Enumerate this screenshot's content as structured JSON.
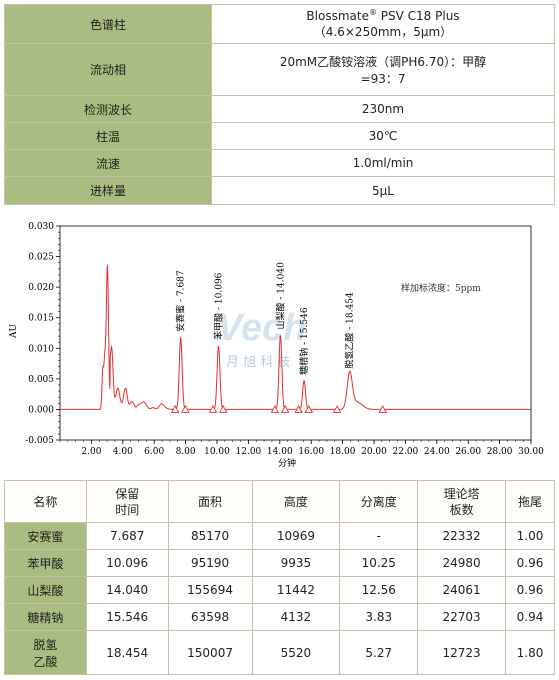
{
  "conditions": {
    "column_label": "色谱柱",
    "column_value_line1": "Blossmate",
    "column_value_reg": "®",
    "column_value_line1b": " PSV C18 Plus",
    "column_value_line2": "（4.6×250mm，5μm）",
    "mobile_label": "流动相",
    "mobile_value_line1": "20mM乙酸铵溶液（调PH6.70）：甲醇",
    "mobile_value_line2": "=93：7",
    "wavelength_label": "检测波长",
    "wavelength_value": "230nm",
    "temp_label": "柱温",
    "temp_value": "30℃",
    "flow_label": "流速",
    "flow_value": "1.0ml/min",
    "injection_label": "进样量",
    "injection_value": "5μL"
  },
  "chart_data": {
    "type": "line",
    "xlabel": "分钟",
    "ylabel": "AU",
    "xlim": [
      0,
      30
    ],
    "ylim": [
      -0.005,
      0.03
    ],
    "x_ticks": [
      "2.00",
      "4.00",
      "6.00",
      "8.00",
      "10.00",
      "12.00",
      "14.00",
      "16.00",
      "18.00",
      "20.00",
      "22.00",
      "24.00",
      "26.00",
      "28.00",
      "30.00"
    ],
    "y_ticks": [
      "-0.005",
      "0.000",
      "0.005",
      "0.010",
      "0.015",
      "0.020",
      "0.025",
      "0.030"
    ],
    "annotation": "样加标浓度：5ppm",
    "watermark": "月 旭 科 技",
    "line_color": "#e03030",
    "peaks": [
      {
        "label": "安赛蜜 - 7.687",
        "rt": 7.687,
        "height": 0.0117
      },
      {
        "label": "苯甲酸 - 10.096",
        "rt": 10.096,
        "height": 0.0104
      },
      {
        "label": "山梨酸 - 14.040",
        "rt": 14.04,
        "height": 0.0121
      },
      {
        "label": "糖精钠 - 15.546",
        "rt": 15.546,
        "height": 0.0047
      },
      {
        "label": "脱氢乙酸 - 18.454",
        "rt": 18.454,
        "height": 0.0057
      }
    ]
  },
  "results": {
    "headers": [
      "名称",
      "保留\n时间",
      "面积",
      "高度",
      "分离度",
      "理论塔\n板数",
      "拖尾"
    ],
    "rows": [
      [
        "安赛蜜",
        "7.687",
        "85170",
        "10969",
        "-",
        "22332",
        "1.00"
      ],
      [
        "苯甲酸",
        "10.096",
        "95190",
        "9935",
        "10.25",
        "24980",
        "0.96"
      ],
      [
        "山梨酸",
        "14.040",
        "155694",
        "11442",
        "12.56",
        "24061",
        "0.96"
      ],
      [
        "糖精钠",
        "15.546",
        "63598",
        "4132",
        "3.83",
        "22703",
        "0.94"
      ],
      [
        "脱氢\n乙酸",
        "18.454",
        "150007",
        "5520",
        "5.27",
        "12723",
        "1.80"
      ]
    ]
  }
}
